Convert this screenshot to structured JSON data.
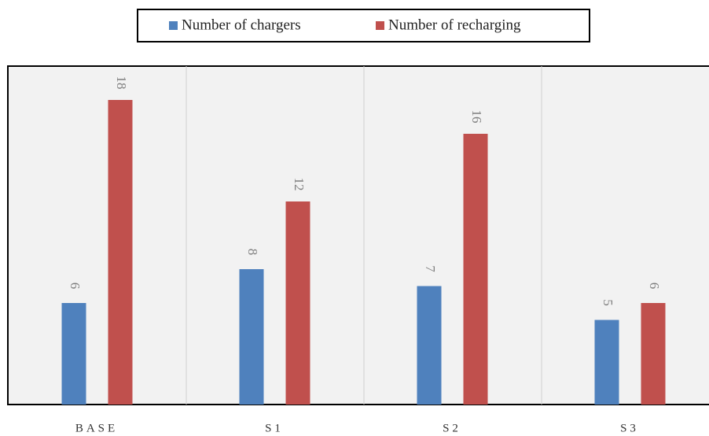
{
  "chart_data": {
    "type": "bar",
    "categories": [
      "BASE",
      "S1",
      "S2",
      "S3"
    ],
    "series": [
      {
        "name": "Number of chargers",
        "color": "#4f81bd",
        "values": [
          6,
          8,
          7,
          5
        ]
      },
      {
        "name": "Number of recharging",
        "color": "#c0504d",
        "values": [
          18,
          12,
          16,
          6
        ]
      }
    ],
    "ylim": [
      0,
      20
    ]
  }
}
